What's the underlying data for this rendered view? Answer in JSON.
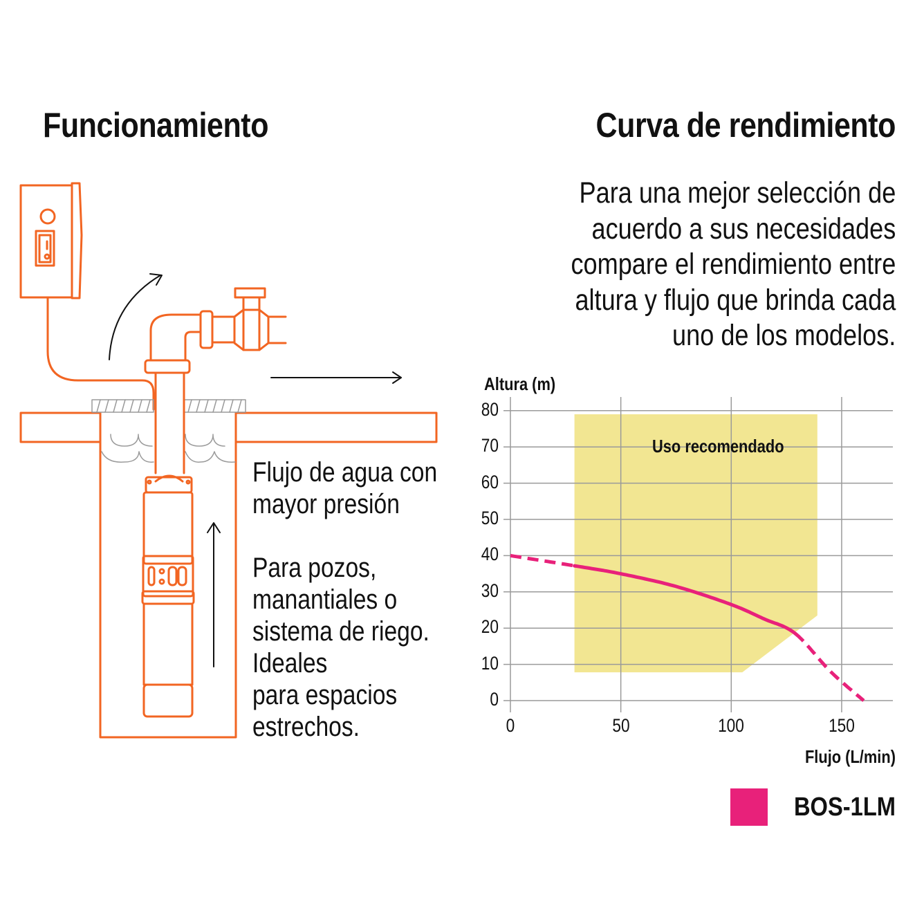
{
  "left_section": {
    "title": "Funcionamiento",
    "feature_1": [
      "Flujo de agua con",
      "mayor presión"
    ],
    "feature_2": [
      "Para pozos,",
      "manantiales o",
      "sistema de riego.",
      "Ideales",
      "para espacios",
      "estrechos."
    ],
    "illustration": {
      "elements": [
        "control-box",
        "power-switch",
        "cable",
        "pipe-elbow",
        "valve",
        "ground",
        "well",
        "water",
        "submersible-pump",
        "flow-arrows"
      ],
      "pump_display": "0:00",
      "line_color": "#f26522",
      "arrow_color": "#111111",
      "water_color": "#9a9a9a"
    }
  },
  "right_section": {
    "title": "Curva de rendimiento",
    "description": [
      "Para una mejor selección de",
      "acuerdo a sus necesidades",
      "compare el rendimiento entre",
      "altura y flujo que brinda cada",
      "uno de los modelos."
    ]
  },
  "chart_data": {
    "type": "line",
    "title": "Curva de rendimiento",
    "xlabel": "Flujo (L/min)",
    "ylabel": "Altura (m)",
    "xlim": [
      0,
      170
    ],
    "ylim": [
      0,
      80
    ],
    "x_ticks": [
      0,
      50,
      100,
      150
    ],
    "y_ticks": [
      0,
      10,
      20,
      30,
      40,
      50,
      60,
      70,
      80
    ],
    "grid": true,
    "series": [
      {
        "name": "BOS-1LM",
        "color": "#e8217a",
        "x": [
          0,
          29,
          50,
          75,
          100,
          115,
          129,
          145,
          160
        ],
        "y": [
          40,
          37.2,
          35,
          31.5,
          26.5,
          22.5,
          18.5,
          8,
          0
        ],
        "solid_range_x": [
          29,
          129
        ],
        "dashed_outside_range": true
      }
    ],
    "annotations": [
      {
        "type": "region",
        "label": "Uso recomendado",
        "color": "#f2e692",
        "polygon": [
          [
            29,
            79
          ],
          [
            139,
            79
          ],
          [
            139,
            23.5
          ],
          [
            105,
            7.8
          ],
          [
            29,
            7.8
          ]
        ]
      }
    ],
    "legend": {
      "position": "bottom-right",
      "entries": [
        {
          "label": "BOS-1LM",
          "color": "#e8217a"
        }
      ]
    }
  }
}
